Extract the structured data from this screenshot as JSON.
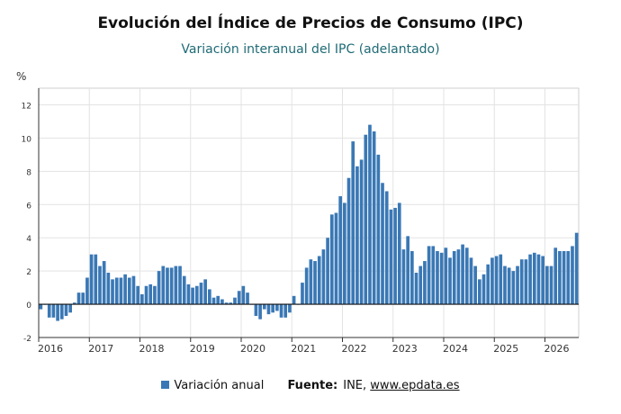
{
  "header": {
    "title": "Evolución del Índice de Precios de Consumo (IPC)",
    "subtitle": "Variación interanual del IPC (adelantado)"
  },
  "colors": {
    "bar": "#3a78b5",
    "subtitle": "#1f6b75",
    "grid": "#e3e3e3",
    "axis": "#333333",
    "plot_border": "#cfcfcf"
  },
  "legend": {
    "label": "Variación anual",
    "source_label": "Fuente:",
    "source_text": "INE,",
    "source_link": "www.epdata.es"
  },
  "chart_data": {
    "type": "bar",
    "title": "Evolución del Índice de Precios de Consumo (IPC)",
    "subtitle": "Variación interanual del IPC (adelantado)",
    "ylabel": "%",
    "ylim": [
      -2,
      13
    ],
    "yticks": [
      -2,
      0,
      2,
      4,
      6,
      8,
      10,
      12
    ],
    "xticks": [
      "2016",
      "2017",
      "2018",
      "2019",
      "2020",
      "2021",
      "2022",
      "2023",
      "2024",
      "2025",
      "2026"
    ],
    "x_start": "2016-01",
    "x_end": "2026-08",
    "grid": true,
    "legend_position": "bottom",
    "series": [
      {
        "name": "Variación anual",
        "values": [
          -0.3,
          0.0,
          -0.8,
          -0.8,
          -1.0,
          -0.9,
          -0.7,
          -0.5,
          0.1,
          0.7,
          0.7,
          1.6,
          3.0,
          3.0,
          2.3,
          2.6,
          1.9,
          1.5,
          1.6,
          1.6,
          1.8,
          1.6,
          1.7,
          1.1,
          0.6,
          1.1,
          1.2,
          1.1,
          2.0,
          2.3,
          2.2,
          2.2,
          2.3,
          2.3,
          1.7,
          1.2,
          1.0,
          1.1,
          1.3,
          1.5,
          0.9,
          0.4,
          0.5,
          0.3,
          0.1,
          0.1,
          0.4,
          0.8,
          1.1,
          0.7,
          0.0,
          -0.7,
          -0.9,
          -0.3,
          -0.6,
          -0.5,
          -0.4,
          -0.8,
          -0.8,
          -0.5,
          0.5,
          0.0,
          1.3,
          2.2,
          2.7,
          2.6,
          2.9,
          3.3,
          4.0,
          5.4,
          5.5,
          6.5,
          6.1,
          7.6,
          9.8,
          8.3,
          8.7,
          10.2,
          10.8,
          10.4,
          9.0,
          7.3,
          6.8,
          5.7,
          5.8,
          6.1,
          3.3,
          4.1,
          3.2,
          1.9,
          2.3,
          2.6,
          3.5,
          3.5,
          3.2,
          3.1,
          3.4,
          2.8,
          3.2,
          3.3,
          3.6,
          3.4,
          2.8,
          2.3,
          1.5,
          1.8,
          2.4,
          2.8,
          2.9,
          3.0,
          2.3,
          2.2,
          2.0,
          2.3,
          2.7,
          2.7,
          3.0,
          3.1,
          3.0,
          2.9,
          2.3,
          2.3,
          3.4,
          3.2,
          3.2,
          3.2,
          3.5,
          4.3
        ]
      }
    ]
  }
}
